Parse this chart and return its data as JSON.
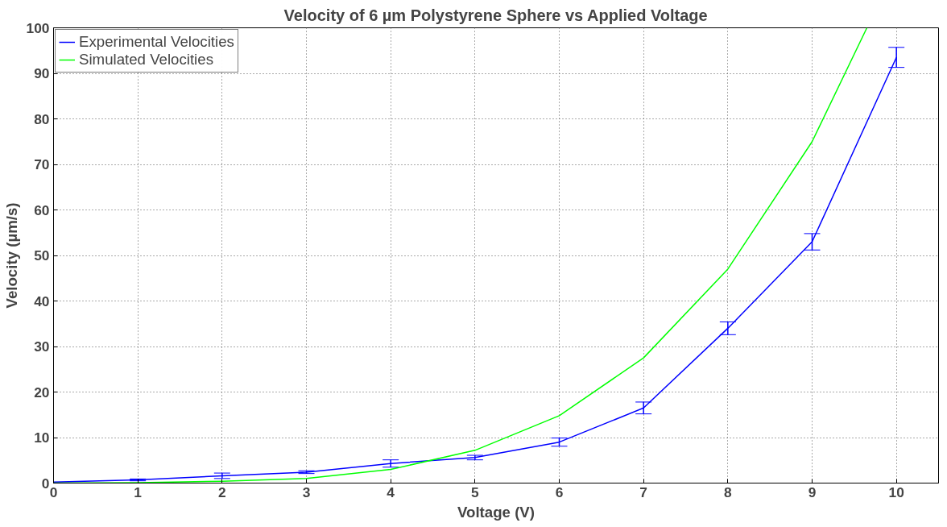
{
  "chart_data": {
    "type": "line",
    "title": "Velocity of 6 µm Polystyrene Sphere vs Applied Voltage",
    "xlabel": "Voltage (V)",
    "ylabel": "Velocity (µm/s)",
    "x": [
      0,
      1,
      2,
      3,
      4,
      5,
      6,
      7,
      8,
      9,
      10
    ],
    "series": [
      {
        "name": "Experimental Velocities",
        "color": "#0000ff",
        "values": [
          0.2,
          0.7,
          1.6,
          2.4,
          4.3,
          5.6,
          9,
          16.5,
          34,
          53,
          93.5
        ],
        "errors": [
          null,
          0.2,
          0.6,
          0.3,
          0.8,
          0.5,
          0.9,
          1.3,
          1.4,
          1.8,
          2.2
        ]
      },
      {
        "name": "Simulated Velocities",
        "color": "#00ff00",
        "x": [
          0,
          1,
          2,
          3,
          4,
          5,
          6,
          7,
          8,
          9,
          9.65
        ],
        "values": [
          0,
          0.1,
          0.4,
          1,
          3,
          7.2,
          14.8,
          27.5,
          47,
          75,
          100
        ]
      }
    ],
    "xlim": [
      0,
      10.5
    ],
    "ylim": [
      0,
      100
    ],
    "xticks": [
      0,
      1,
      2,
      3,
      4,
      5,
      6,
      7,
      8,
      9,
      10
    ],
    "yticks": [
      0,
      10,
      20,
      30,
      40,
      50,
      60,
      70,
      80,
      90,
      100
    ],
    "grid": true,
    "legend": "top left",
    "line_style": "solid",
    "marker": "none"
  }
}
